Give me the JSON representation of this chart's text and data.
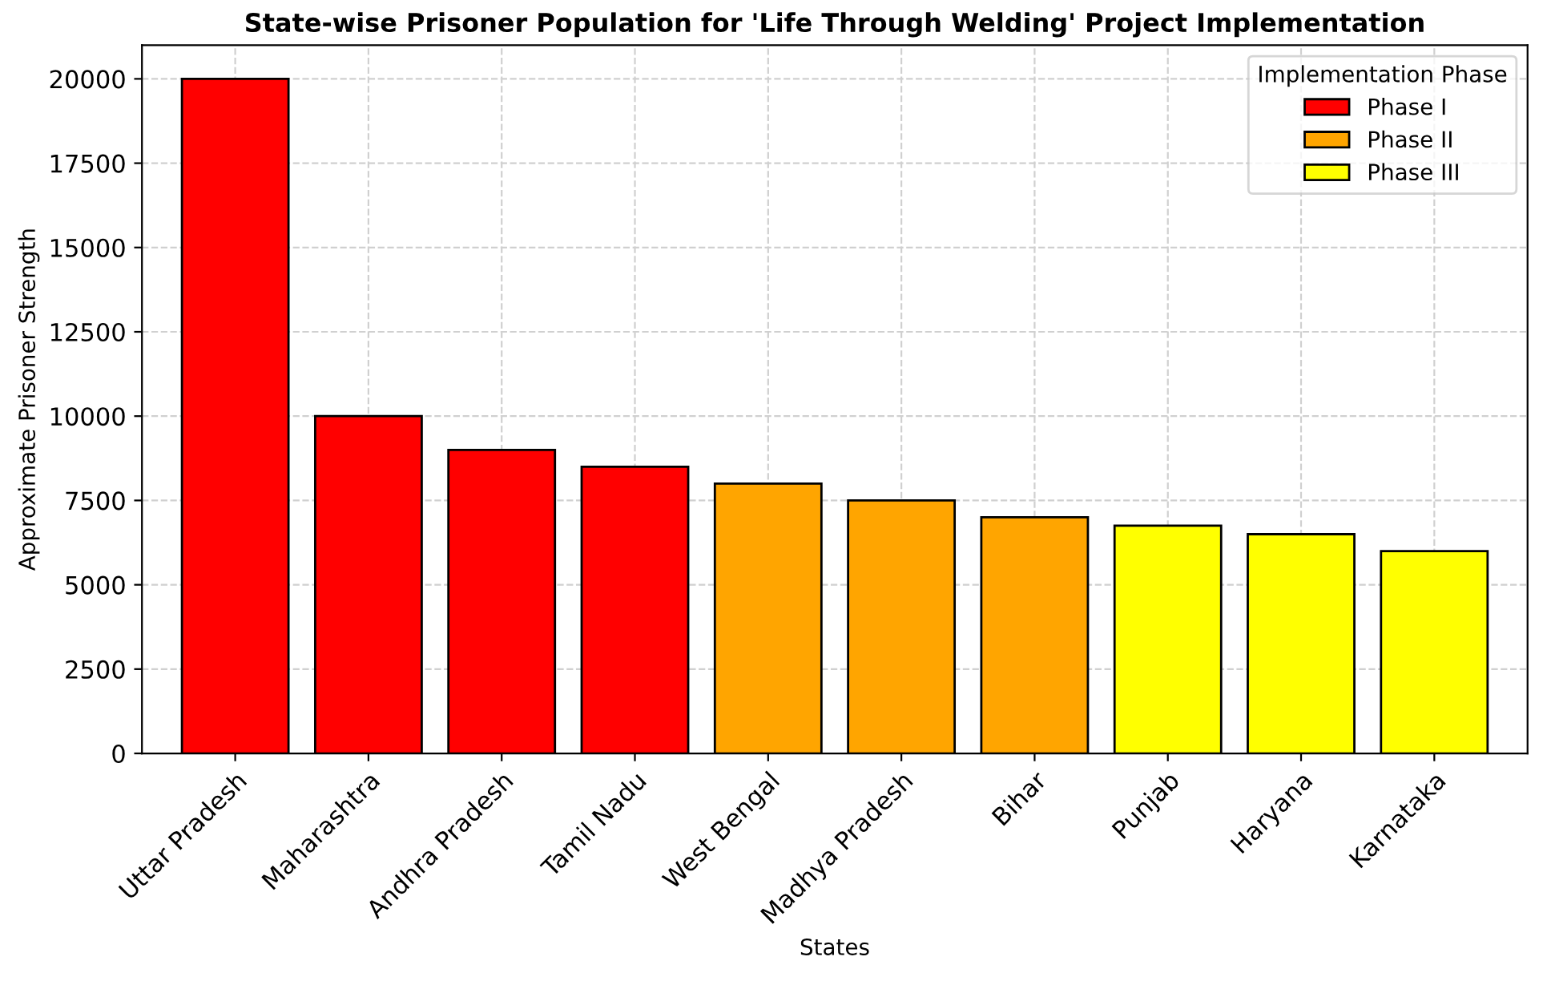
{
  "chart_data": {
    "type": "bar",
    "title": "State-wise Prisoner Population for 'Life Through Welding' Project Implementation",
    "xlabel": "States",
    "ylabel": "Approximate Prisoner Strength",
    "legend_title": "Implementation Phase",
    "categories": [
      "Uttar Pradesh",
      "Maharashtra",
      "Andhra Pradesh",
      "Tamil Nadu",
      "West Bengal",
      "Madhya Pradesh",
      "Bihar",
      "Punjab",
      "Haryana",
      "Karnataka"
    ],
    "series": [
      {
        "name": "Phase I",
        "color": "#ff0000",
        "values": [
          20000,
          10000,
          9000,
          8500,
          null,
          null,
          null,
          null,
          null,
          null
        ]
      },
      {
        "name": "Phase II",
        "color": "#ffa500",
        "values": [
          null,
          null,
          null,
          null,
          8000,
          7500,
          7000,
          null,
          null,
          null
        ]
      },
      {
        "name": "Phase III",
        "color": "#ffff00",
        "values": [
          null,
          null,
          null,
          null,
          null,
          null,
          null,
          6750,
          6500,
          6000
        ]
      }
    ],
    "ylim": [
      0,
      21000
    ],
    "yticks": [
      0,
      2500,
      5000,
      7500,
      10000,
      12500,
      15000,
      17500,
      20000
    ],
    "grid": true,
    "legend": "top right"
  }
}
